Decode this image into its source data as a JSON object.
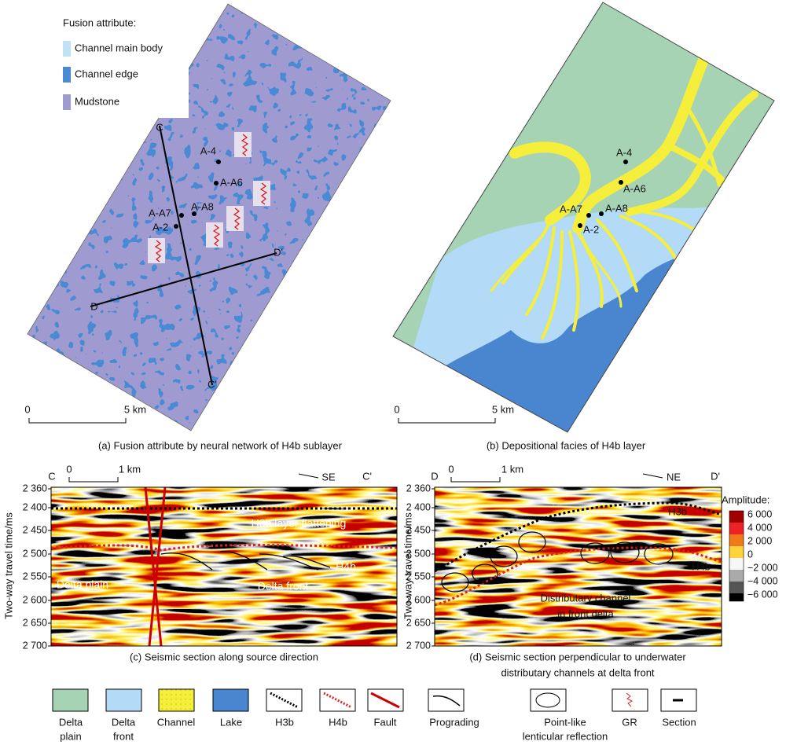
{
  "panel_a": {
    "legend_title": "Fusion attribute:",
    "legend": [
      "Channel main body",
      "Channel edge",
      "Mudstone"
    ],
    "wells": [
      "A-4",
      "A-A6",
      "A-A8",
      "A-A7",
      "A-2"
    ],
    "sections": [
      "C",
      "C'",
      "D",
      "D'"
    ],
    "scale": [
      "0",
      "5 km"
    ],
    "caption": "(a) Fusion attribute by neural network of H4b sublayer"
  },
  "panel_b": {
    "wells": [
      "A-4",
      "A-A6",
      "A-A8",
      "A-A7",
      "A-2"
    ],
    "scale": [
      "0",
      "5 km"
    ],
    "caption": "(b) Depositional facies of H4b layer"
  },
  "panel_c": {
    "ends": [
      "C",
      "C'"
    ],
    "direction": "SE",
    "scale": [
      "0",
      "1 km"
    ],
    "y_axis_title": "Two-way travel time/ms",
    "y_ticks": [
      "2 360",
      "2 400",
      "2 450",
      "2 500",
      "2 550",
      "2 600",
      "2 650",
      "2 700"
    ],
    "labels": [
      "H3b layer flattening",
      "H4b",
      "Delta plain",
      "Delta front"
    ],
    "caption": "(c) Seismic section along source direction"
  },
  "panel_d": {
    "ends": [
      "D",
      "D'"
    ],
    "direction": "NE",
    "scale": [
      "0",
      "1 km"
    ],
    "y_axis_title": "Two-way travel time/ms",
    "y_ticks": [
      "2 360",
      "2 400",
      "2 450",
      "2 500",
      "2 550",
      "2 600",
      "2 650",
      "2 700"
    ],
    "labels": [
      "H3b",
      "H4b",
      "Distributary channel",
      "in front delta"
    ],
    "colorbar": {
      "title": "Amplitude:",
      "ticks": [
        "6 000",
        "4 000",
        "2 000",
        "0",
        "−2 000",
        "−4 000",
        "−6 000"
      ]
    },
    "caption": [
      "(d) Seismic section perpendicular to underwater",
      "distributary channels at delta front"
    ]
  },
  "legend": [
    [
      "Delta",
      "plain"
    ],
    [
      "Delta",
      "front"
    ],
    [
      "Channel"
    ],
    [
      "Lake"
    ],
    [
      "H3b"
    ],
    [
      "H4b"
    ],
    [
      "Fault"
    ],
    [
      "Prograding"
    ],
    [
      "Point-like",
      "lenticular reflection"
    ],
    [
      "GR"
    ],
    [
      "Section"
    ]
  ]
}
